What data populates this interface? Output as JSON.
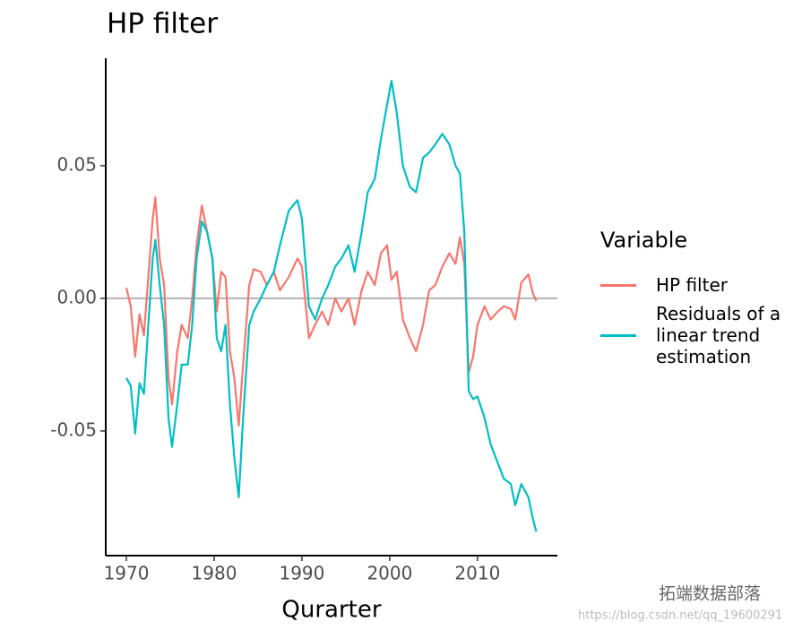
{
  "chart_data": {
    "type": "line",
    "title": "HP filter",
    "x_label": "Qurarter",
    "legend_title": "Variable",
    "x": [
      1970,
      1970.5,
      1971,
      1971.5,
      1972,
      1972.5,
      1973,
      1973.3,
      1973.8,
      1974.3,
      1974.8,
      1975.2,
      1975.8,
      1976.3,
      1977,
      1977.5,
      1978,
      1978.6,
      1979.2,
      1979.8,
      1980.3,
      1980.8,
      1981.3,
      1981.8,
      1982.3,
      1982.8,
      1983.3,
      1984,
      1984.5,
      1985.3,
      1986,
      1986.8,
      1987.5,
      1988.5,
      1989.5,
      1990,
      1990.8,
      1991.5,
      1992.3,
      1993,
      1993.8,
      1994.5,
      1995.3,
      1996,
      1996.8,
      1997.5,
      1998.3,
      1999,
      1999.7,
      2000.2,
      2000.8,
      2001.5,
      2002.3,
      2003,
      2003.8,
      2004.5,
      2005.2,
      2006,
      2006.8,
      2007.5,
      2008,
      2008.5,
      2009,
      2009.5,
      2010,
      2010.8,
      2011.5,
      2012.3,
      2013,
      2013.8,
      2014.3,
      2015,
      2015.8,
      2016.3,
      2016.7
    ],
    "series": [
      {
        "name": "HP filter",
        "color": "#F8766D",
        "values": [
          0.004,
          -0.003,
          -0.022,
          -0.006,
          -0.014,
          0.008,
          0.03,
          0.038,
          0.015,
          0.005,
          -0.03,
          -0.04,
          -0.02,
          -0.01,
          -0.015,
          0.0,
          0.02,
          0.035,
          0.025,
          0.015,
          -0.005,
          0.01,
          0.008,
          -0.02,
          -0.03,
          -0.048,
          -0.025,
          0.005,
          0.011,
          0.01,
          0.005,
          0.01,
          0.003,
          0.008,
          0.015,
          0.012,
          -0.015,
          -0.01,
          -0.005,
          -0.01,
          0.0,
          -0.005,
          0.0,
          -0.01,
          0.003,
          0.01,
          0.005,
          0.017,
          0.02,
          0.007,
          0.01,
          -0.008,
          -0.015,
          -0.02,
          -0.01,
          0.003,
          0.005,
          0.012,
          0.017,
          0.013,
          0.023,
          0.013,
          -0.028,
          -0.022,
          -0.01,
          -0.003,
          -0.008,
          -0.005,
          -0.003,
          -0.004,
          -0.008,
          0.006,
          0.009,
          0.002,
          -0.001
        ]
      },
      {
        "name": "Residuals of a linear trend estimation",
        "color": "#00BFC4",
        "values": [
          -0.03,
          -0.033,
          -0.051,
          -0.032,
          -0.036,
          -0.01,
          0.015,
          0.022,
          0.005,
          -0.01,
          -0.045,
          -0.056,
          -0.04,
          -0.025,
          -0.025,
          -0.01,
          0.015,
          0.029,
          0.025,
          0.015,
          -0.015,
          -0.02,
          -0.01,
          -0.04,
          -0.06,
          -0.075,
          -0.045,
          -0.01,
          -0.005,
          0.0,
          0.005,
          0.01,
          0.02,
          0.033,
          0.037,
          0.03,
          -0.003,
          -0.008,
          0.0,
          0.005,
          0.012,
          0.015,
          0.02,
          0.01,
          0.025,
          0.04,
          0.045,
          0.06,
          0.073,
          0.082,
          0.07,
          0.05,
          0.042,
          0.04,
          0.053,
          0.055,
          0.058,
          0.062,
          0.058,
          0.05,
          0.047,
          0.025,
          -0.035,
          -0.038,
          -0.037,
          -0.045,
          -0.055,
          -0.062,
          -0.068,
          -0.07,
          -0.078,
          -0.07,
          -0.075,
          -0.083,
          -0.088
        ]
      }
    ],
    "xlim": [
      1967.65,
      2019.1
    ],
    "ylim": [
      -0.097,
      0.0905
    ],
    "xticks": [
      1970,
      1980,
      1990,
      2000,
      2010
    ],
    "yticks": [
      -0.05,
      {
        "value": 0,
        "label": "0.00"
      },
      0.05
    ],
    "hline": 0,
    "grid": false,
    "legend": "right",
    "watermark": "拓端数据部落",
    "watermark_url": "https://blog.csdn.net/qq_19600291"
  }
}
